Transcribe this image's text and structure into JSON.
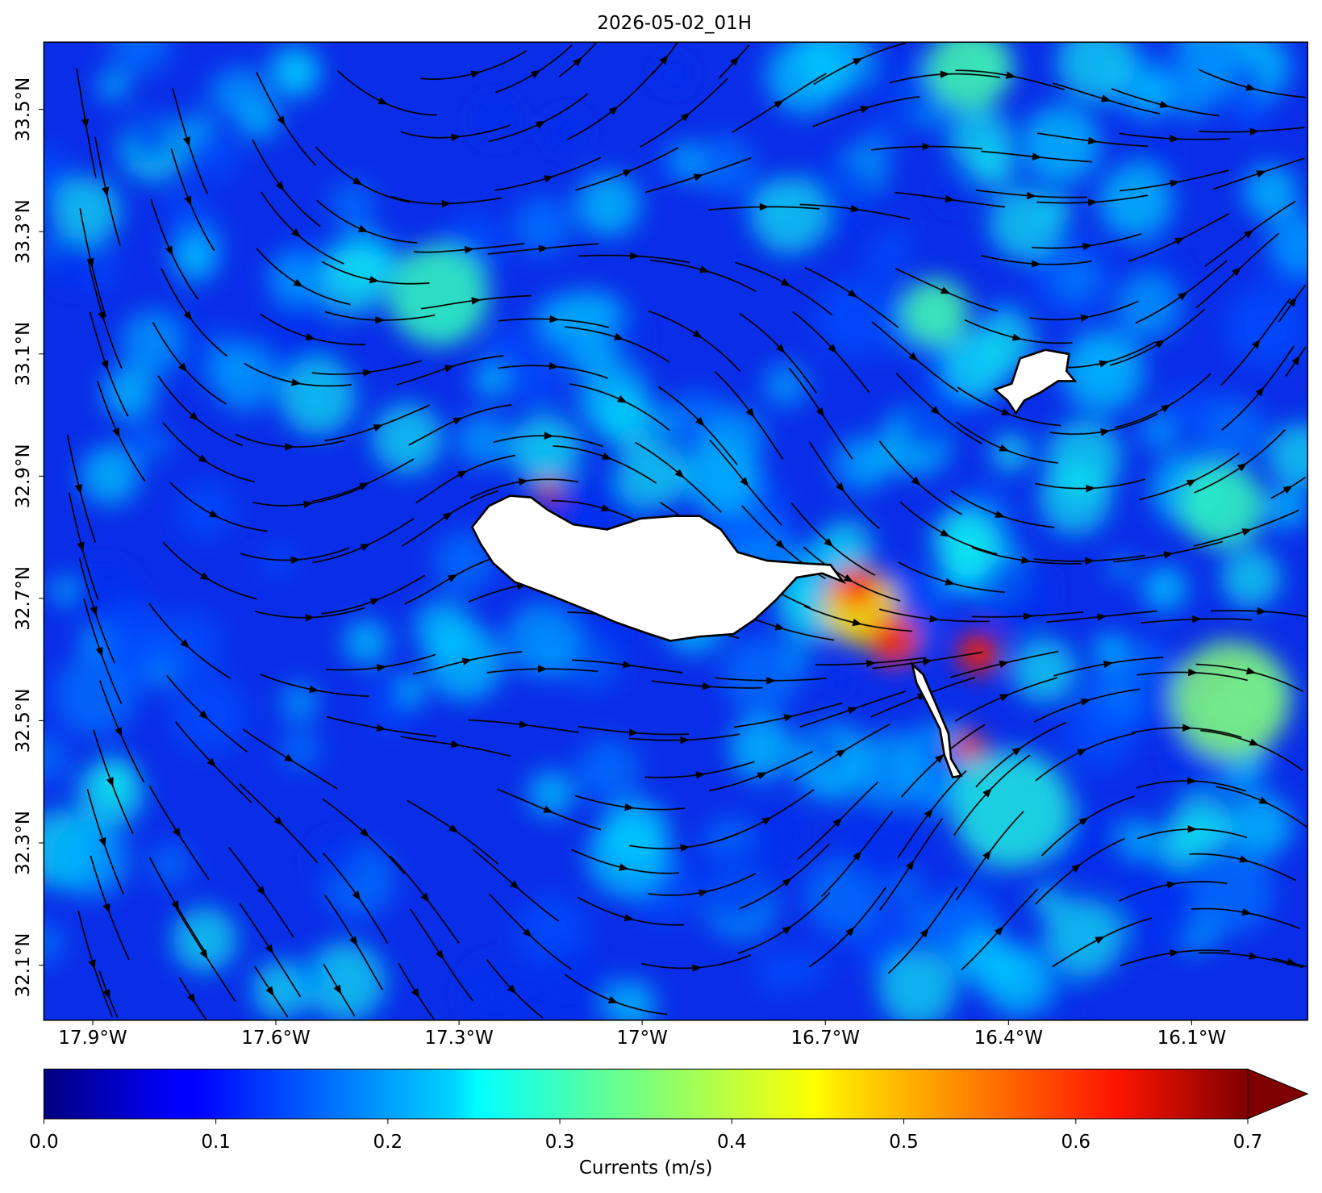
{
  "chart_data": {
    "type": "map",
    "title": "2026-05-02_01H",
    "xlim": [
      -17.98,
      -15.91
    ],
    "ylim": [
      32.01,
      33.61
    ],
    "xticks": [
      {
        "value": -17.9,
        "label": "17.9°W"
      },
      {
        "value": -17.6,
        "label": "17.6°W"
      },
      {
        "value": -17.3,
        "label": "17.3°W"
      },
      {
        "value": -17.0,
        "label": "17°W"
      },
      {
        "value": -16.7,
        "label": "16.7°W"
      },
      {
        "value": -16.4,
        "label": "16.4°W"
      },
      {
        "value": -16.1,
        "label": "16.1°W"
      }
    ],
    "yticks": [
      {
        "value": 32.1,
        "label": "32.1°N"
      },
      {
        "value": 32.3,
        "label": "32.3°N"
      },
      {
        "value": 32.5,
        "label": "32.5°N"
      },
      {
        "value": 32.7,
        "label": "32.7°N"
      },
      {
        "value": 32.9,
        "label": "32.9°N"
      },
      {
        "value": 33.1,
        "label": "33.1°N"
      },
      {
        "value": 33.3,
        "label": "33.3°N"
      },
      {
        "value": 33.5,
        "label": "33.5°N"
      }
    ],
    "colorbar": {
      "label": "Currents (m/s)",
      "colormap": "jet",
      "extend": "max",
      "clim": [
        0,
        0.7
      ],
      "ticks": [
        {
          "value": 0,
          "label": "0.0"
        },
        0.1,
        0.2,
        0.3,
        0.4,
        0.5,
        0.6,
        0.7
      ]
    }
  }
}
